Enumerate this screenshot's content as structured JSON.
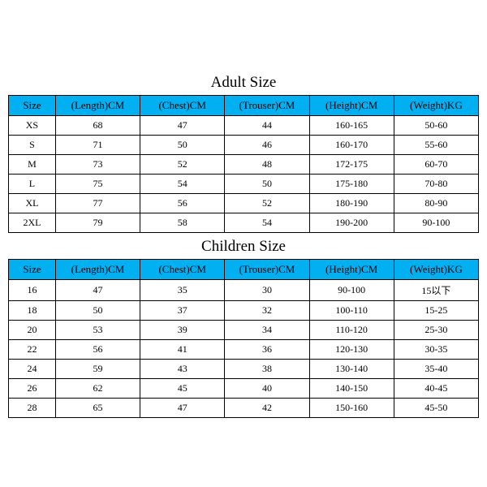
{
  "adult": {
    "title": "Adult Size",
    "columns": [
      "Size",
      "(Length)CM",
      "(Chest)CM",
      "(Trouser)CM",
      "(Height)CM",
      "(Weight)KG"
    ],
    "rows": [
      [
        "XS",
        "68",
        "47",
        "44",
        "160-165",
        "50-60"
      ],
      [
        "S",
        "71",
        "50",
        "46",
        "160-170",
        "55-60"
      ],
      [
        "M",
        "73",
        "52",
        "48",
        "172-175",
        "60-70"
      ],
      [
        "L",
        "75",
        "54",
        "50",
        "175-180",
        "70-80"
      ],
      [
        "XL",
        "77",
        "56",
        "52",
        "180-190",
        "80-90"
      ],
      [
        "2XL",
        "79",
        "58",
        "54",
        "190-200",
        "90-100"
      ]
    ]
  },
  "children": {
    "title": "Children Size",
    "columns": [
      "Size",
      "(Length)CM",
      "(Chest)CM",
      "(Trouser)CM",
      "(Height)CM",
      "(Weight)KG"
    ],
    "rows": [
      [
        "16",
        "47",
        "35",
        "30",
        "90-100",
        "15以下"
      ],
      [
        "18",
        "50",
        "37",
        "32",
        "100-110",
        "15-25"
      ],
      [
        "20",
        "53",
        "39",
        "34",
        "110-120",
        "25-30"
      ],
      [
        "22",
        "56",
        "41",
        "36",
        "120-130",
        "30-35"
      ],
      [
        "24",
        "59",
        "43",
        "38",
        "130-140",
        "35-40"
      ],
      [
        "26",
        "62",
        "45",
        "40",
        "140-150",
        "40-45"
      ],
      [
        "28",
        "65",
        "47",
        "42",
        "150-160",
        "45-50"
      ]
    ]
  },
  "style": {
    "header_bg": "#00b0f0",
    "border_color": "#000000",
    "background_color": "#ffffff",
    "title_fontsize": 19,
    "header_fontsize": 13,
    "cell_fontsize": 12
  }
}
